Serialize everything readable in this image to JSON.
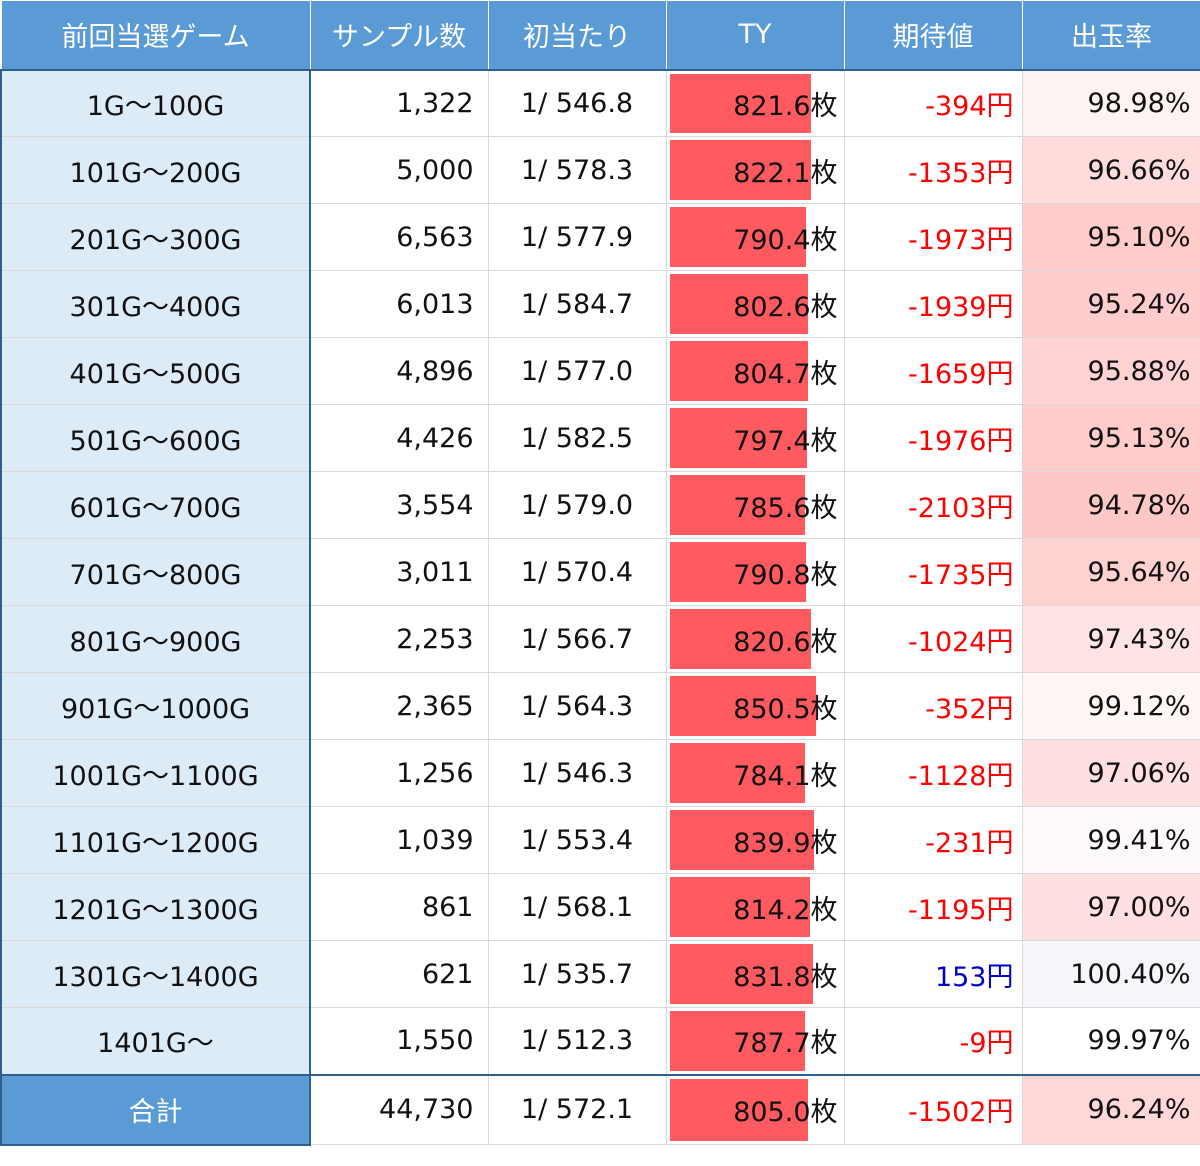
{
  "chart_data": {
    "type": "table",
    "columns": [
      "前回当選ゲーム",
      "サンプル数",
      "初当たり",
      "TY",
      "期待値",
      "出玉率"
    ],
    "ty_unit": "枚",
    "ev_unit": "円",
    "ty_bar_max": 1000,
    "colors": {
      "header": "#5b9bd5",
      "range_bg": "#ddebf7",
      "bar": "#ff5a60",
      "negative": "#ff0000",
      "positive": "#0000cc"
    },
    "rows": [
      {
        "range": "1G〜100G",
        "samples": "1,322",
        "prob": "1/ 546.8",
        "ty": 821.6,
        "ev": -394,
        "rate": 98.98
      },
      {
        "range": "101G〜200G",
        "samples": "5,000",
        "prob": "1/ 578.3",
        "ty": 822.1,
        "ev": -1353,
        "rate": 96.66
      },
      {
        "range": "201G〜300G",
        "samples": "6,563",
        "prob": "1/ 577.9",
        "ty": 790.4,
        "ev": -1973,
        "rate": 95.1
      },
      {
        "range": "301G〜400G",
        "samples": "6,013",
        "prob": "1/ 584.7",
        "ty": 802.6,
        "ev": -1939,
        "rate": 95.24
      },
      {
        "range": "401G〜500G",
        "samples": "4,896",
        "prob": "1/ 577.0",
        "ty": 804.7,
        "ev": -1659,
        "rate": 95.88
      },
      {
        "range": "501G〜600G",
        "samples": "4,426",
        "prob": "1/ 582.5",
        "ty": 797.4,
        "ev": -1976,
        "rate": 95.13
      },
      {
        "range": "601G〜700G",
        "samples": "3,554",
        "prob": "1/ 579.0",
        "ty": 785.6,
        "ev": -2103,
        "rate": 94.78
      },
      {
        "range": "701G〜800G",
        "samples": "3,011",
        "prob": "1/ 570.4",
        "ty": 790.8,
        "ev": -1735,
        "rate": 95.64
      },
      {
        "range": "801G〜900G",
        "samples": "2,253",
        "prob": "1/ 566.7",
        "ty": 820.6,
        "ev": -1024,
        "rate": 97.43
      },
      {
        "range": "901G〜1000G",
        "samples": "2,365",
        "prob": "1/ 564.3",
        "ty": 850.5,
        "ev": -352,
        "rate": 99.12
      },
      {
        "range": "1001G〜1100G",
        "samples": "1,256",
        "prob": "1/ 546.3",
        "ty": 784.1,
        "ev": -1128,
        "rate": 97.06
      },
      {
        "range": "1101G〜1200G",
        "samples": "1,039",
        "prob": "1/ 553.4",
        "ty": 839.9,
        "ev": -231,
        "rate": 99.41
      },
      {
        "range": "1201G〜1300G",
        "samples": "861",
        "prob": "1/ 568.1",
        "ty": 814.2,
        "ev": -1195,
        "rate": 97.0
      },
      {
        "range": "1301G〜1400G",
        "samples": "621",
        "prob": "1/ 535.7",
        "ty": 831.8,
        "ev": 153,
        "rate": 100.4
      },
      {
        "range": "1401G〜",
        "samples": "1,550",
        "prob": "1/ 512.3",
        "ty": 787.7,
        "ev": -9,
        "rate": 99.97
      }
    ],
    "total": {
      "range": "合計",
      "samples": "44,730",
      "prob": "1/ 572.1",
      "ty": 805.0,
      "ev": -1502,
      "rate": 96.24
    }
  }
}
